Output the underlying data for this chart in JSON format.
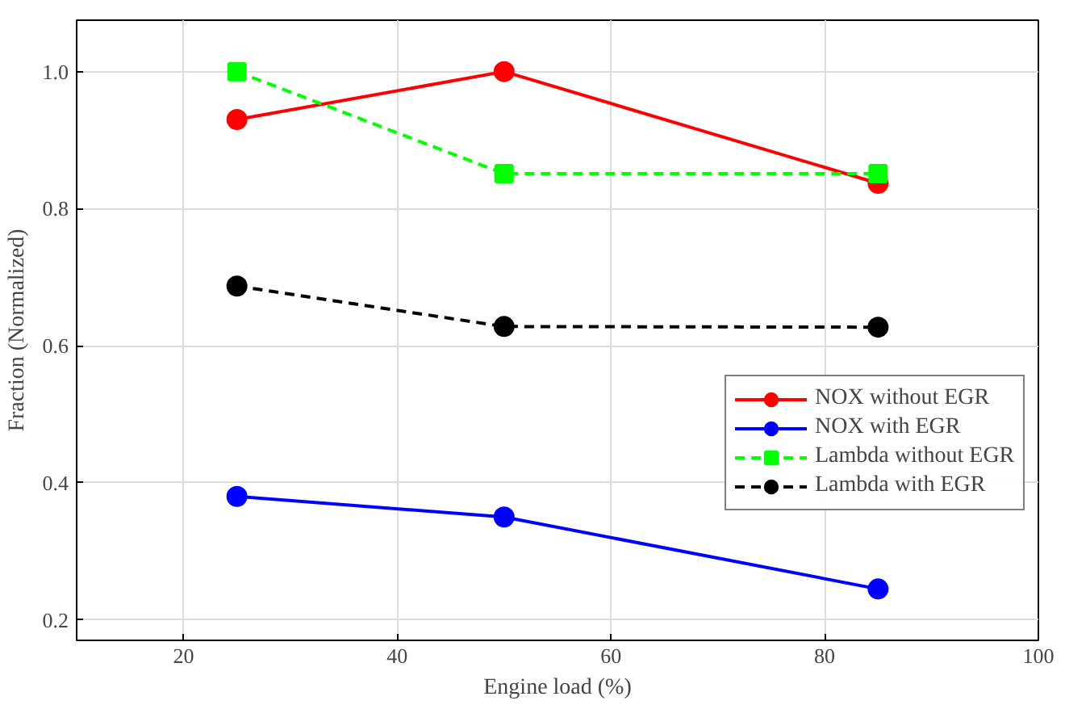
{
  "chart_data": {
    "type": "line",
    "xlabel": "Engine load (%)",
    "ylabel": "Fraction (Normalized)",
    "x": [
      25,
      50,
      85
    ],
    "xlim": [
      10,
      100
    ],
    "xticks": [
      20,
      40,
      60,
      80,
      100
    ],
    "ylim": [
      0.17,
      1.075
    ],
    "yticks": [
      0.2,
      0.4,
      0.6,
      0.8,
      {
        "value": 1,
        "label": "1.0"
      }
    ],
    "grid": true,
    "legend": "right",
    "series": [
      {
        "name": "NOX without EGR",
        "color": "#ff0000",
        "values": [
          0.93,
          1.0,
          0.837
        ],
        "marker": "circle",
        "line_style": "solid"
      },
      {
        "name": "NOX with EGR",
        "color": "#0000ff",
        "values": [
          0.38,
          0.35,
          0.245
        ],
        "marker": "circle",
        "line_style": "solid"
      },
      {
        "name": "Lambda without EGR",
        "color": "#00ff00",
        "values": [
          1.0,
          0.851,
          0.851
        ],
        "marker": "square",
        "line_style": "dashed"
      },
      {
        "name": "Lambda with EGR",
        "color": "#000000",
        "values": [
          0.687,
          0.628,
          0.627
        ],
        "marker": "circle",
        "line_style": "dashed"
      }
    ]
  }
}
